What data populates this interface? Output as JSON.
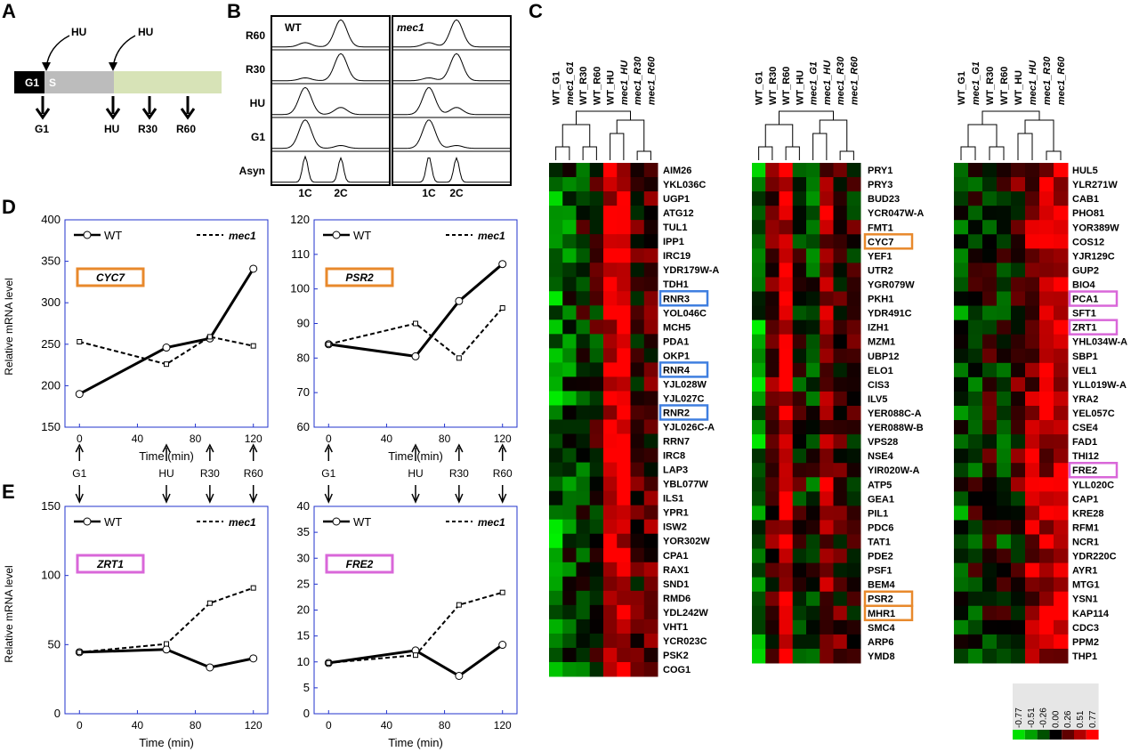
{
  "panel_labels": {
    "a": "A",
    "b": "B",
    "c": "C",
    "d": "D",
    "e": "E"
  },
  "panel_a": {
    "hu1": "HU",
    "hu2": "HU",
    "g1_box": "G1",
    "s_box": "S",
    "samples": [
      "G1",
      "HU",
      "R30",
      "R60"
    ],
    "colors": {
      "g1": "#000000",
      "s": "#bcbcbc",
      "arrest": "#d7e3b7"
    }
  },
  "panel_b": {
    "rows": [
      "R60",
      "R30",
      "HU",
      "G1",
      "Asyn"
    ],
    "wt_title": "WT",
    "mec1_title": "mec1",
    "x_labels": [
      "1C",
      "2C"
    ]
  },
  "time_axis": {
    "xlabel": "Time (min)",
    "ticks": [
      "0",
      "40",
      "80",
      "120"
    ],
    "samples": [
      "G1",
      "HU",
      "R30",
      "R60"
    ]
  },
  "chart_data": [
    {
      "type": "line",
      "id": "CYC7",
      "gene_label": "CYC7",
      "ylabel": "Relative mRNA level",
      "ylim": [
        150,
        400
      ],
      "yticks": [
        "150",
        "200",
        "250",
        "300",
        "350",
        "400"
      ],
      "x": [
        0,
        60,
        90,
        120
      ],
      "xlim": [
        -10,
        130
      ],
      "series": [
        {
          "name": "WT",
          "values": [
            190,
            246,
            257,
            341
          ]
        },
        {
          "name": "mec1",
          "values": [
            253,
            226,
            259,
            248
          ]
        }
      ],
      "box_color": "#e8892c"
    },
    {
      "type": "line",
      "id": "PSR2",
      "gene_label": "PSR2",
      "ylabel": "",
      "ylim": [
        60,
        120
      ],
      "yticks": [
        "60",
        "70",
        "80",
        "90",
        "100",
        "110",
        "120"
      ],
      "x": [
        0,
        60,
        90,
        120
      ],
      "xlim": [
        -10,
        130
      ],
      "series": [
        {
          "name": "WT",
          "values": [
            84,
            80.5,
            96.5,
            107.2
          ]
        },
        {
          "name": "mec1",
          "values": [
            84,
            90,
            80,
            94.5
          ]
        }
      ],
      "box_color": "#e8892c"
    },
    {
      "type": "line",
      "id": "ZRT1",
      "gene_label": "ZRT1",
      "ylabel": "Relative mRNA level",
      "ylim": [
        0,
        150
      ],
      "yticks": [
        "0",
        "50",
        "100",
        "150"
      ],
      "x": [
        0,
        60,
        90,
        120
      ],
      "xlim": [
        -10,
        130
      ],
      "series": [
        {
          "name": "WT",
          "values": [
            44.5,
            46.5,
            33.5,
            40
          ]
        },
        {
          "name": "mec1",
          "values": [
            44.5,
            50.5,
            80,
            91
          ]
        }
      ],
      "box_color": "#d967d9"
    },
    {
      "type": "line",
      "id": "FRE2",
      "gene_label": "FRE2",
      "ylabel": "",
      "ylim": [
        0,
        40
      ],
      "yticks": [
        "0",
        "5",
        "10",
        "15",
        "20",
        "25",
        "30",
        "35",
        "40"
      ],
      "x": [
        0,
        60,
        90,
        120
      ],
      "xlim": [
        -10,
        130
      ],
      "series": [
        {
          "name": "WT",
          "values": [
            9.8,
            12.2,
            7.3,
            13.3
          ]
        },
        {
          "name": "mec1",
          "values": [
            9.8,
            11.3,
            21,
            23.4
          ]
        }
      ],
      "box_color": "#d967d9"
    },
    {
      "type": "heatmap",
      "id": "heatmap-1",
      "columns": [
        "WT_G1",
        "mec1_G1",
        "WT_R30",
        "WT_R60",
        "WT_HU",
        "mec1_HU",
        "mec1_R30",
        "mec1_R60"
      ],
      "rows": [
        "AIM26",
        "YKL036C",
        "UGP1",
        "ATG12",
        "TUL1",
        "IPP1",
        "IRC19",
        "YDR179W-A",
        "TDH1",
        "RNR3",
        "YOL046C",
        "MCH5",
        "PDA1",
        "OKP1",
        "RNR4",
        "YJL028W",
        "YJL027C",
        "RNR2",
        "YJL026C-A",
        "RRN7",
        "IRC8",
        "LAP3",
        "YBL077W",
        "ILS1",
        "YPR1",
        "ISW2",
        "YOR302W",
        "CPA1",
        "RAX1",
        "SND1",
        "RMD6",
        "YDL242W",
        "VHT1",
        "YCR023C",
        "PSK2",
        "COG1"
      ],
      "boxed": {
        "RNR3": "#3f7fe0",
        "RNR4": "#3f7fe0",
        "RNR2": "#3f7fe0"
      }
    },
    {
      "type": "heatmap",
      "id": "heatmap-2",
      "columns": [
        "WT_G1",
        "WT_R30",
        "WT_R60",
        "WT_HU",
        "mec1_G1",
        "mec1_HU",
        "mec1_R30",
        "mec1_R60"
      ],
      "rows": [
        "PRY1",
        "PRY3",
        "BUD23",
        "YCR047W-A",
        "FMT1",
        "CYC7",
        "YEF1",
        "UTR2",
        "YGR079W",
        "PKH1",
        "YDR491C",
        "IZH1",
        "MZM1",
        "UBP12",
        "ELO1",
        "CIS3",
        "ILV5",
        "YER088C-A",
        "YER088W-B",
        "VPS28",
        "NSE4",
        "YIR020W-A",
        "ATP5",
        "GEA1",
        "PIL1",
        "PDC6",
        "TAT1",
        "PDE2",
        "PSF1",
        "BEM4",
        "PSR2",
        "MHR1",
        "SMC4",
        "ARP6",
        "YMD8"
      ],
      "boxed": {
        "CYC7": "#e8892c",
        "PSR2": "#e8892c",
        "MHR1": "#e8892c"
      }
    },
    {
      "type": "heatmap",
      "id": "heatmap-3",
      "columns": [
        "WT_G1",
        "mec1_G1",
        "WT_R30",
        "WT_R60",
        "WT_HU",
        "mec1_HU",
        "mec1_R30",
        "mec1_R60"
      ],
      "rows": [
        "HUL5",
        "YLR271W",
        "CAB1",
        "PHO81",
        "YOR389W",
        "COS12",
        "YJR129C",
        "GUP2",
        "BIO4",
        "PCA1",
        "SFT1",
        "ZRT1",
        "YHL034W-A",
        "SBP1",
        "VEL1",
        "YLL019W-A",
        "YRA2",
        "YEL057C",
        "CSE4",
        "FAD1",
        "THI12",
        "FRE2",
        "YLL020C",
        "CAP1",
        "KRE28",
        "RFM1",
        "NCR1",
        "YDR220C",
        "AYR1",
        "MTG1",
        "YSN1",
        "KAP114",
        "CDC3",
        "PPM2",
        "THP1"
      ],
      "boxed": {
        "PCA1": "#d967d9",
        "ZRT1": "#d967d9",
        "FRE2": "#d967d9"
      }
    },
    {
      "type": "legend-scale",
      "id": "color-scale",
      "values": [
        "-0.77",
        "-0.51",
        "-0.26",
        "0.00",
        "0.26",
        "0.51",
        "0.77"
      ],
      "colors": [
        "#00e000",
        "#00a000",
        "#005000",
        "#000000",
        "#600000",
        "#b00000",
        "#ff0000"
      ]
    }
  ]
}
